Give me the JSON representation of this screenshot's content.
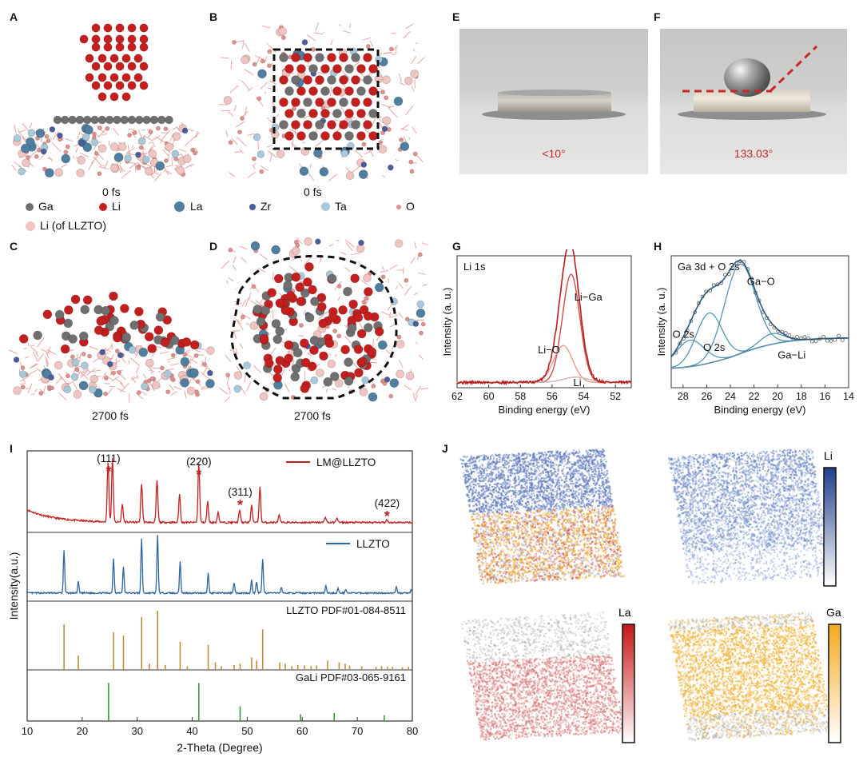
{
  "panels": {
    "A": "A",
    "B": "B",
    "C": "C",
    "D": "D",
    "E": "E",
    "F": "F",
    "G": "G",
    "H": "H",
    "I": "I",
    "J": "J"
  },
  "sim": {
    "time_top_a": "0 fs",
    "time_top_b": "0 fs",
    "time_bottom_c": "2700 fs",
    "time_bottom_d": "2700 fs",
    "legend": [
      {
        "label": "Ga",
        "color": "#6f6f6f"
      },
      {
        "label": "Li",
        "color": "#c41f1f"
      },
      {
        "label": "La",
        "color": "#4f7fa0"
      },
      {
        "label": "Zr",
        "color": "#4a5d9a"
      },
      {
        "label": "Ta",
        "color": "#a9c8da"
      },
      {
        "label": "O",
        "color": "#e2908c"
      },
      {
        "label": "Li (of LLZTO)",
        "color": "#f0c4c0"
      }
    ]
  },
  "photos": {
    "e_angle": "<10°",
    "f_angle": "133.03°"
  },
  "chart_data": [
    {
      "id": "G",
      "type": "line",
      "title": "Li 1s",
      "xlabel": "Binding energy (eV)",
      "ylabel": "Intensity (a. u.)",
      "xlim": [
        62,
        51
      ],
      "xticks": [
        "62",
        "60",
        "58",
        "56",
        "54",
        "52"
      ],
      "peaks": [
        {
          "name": "Li−Ga",
          "center": 54.8,
          "height": 0.82
        },
        {
          "name": "Li−O",
          "center": 55.3,
          "height": 0.28
        },
        {
          "name": "Li",
          "center": 54.5,
          "height": 0.04
        }
      ],
      "labels": [
        "Li−Ga",
        "Li−O",
        "Li"
      ]
    },
    {
      "id": "H",
      "type": "line",
      "title": "Ga 3d + O 2s",
      "xlabel": "Binding energy (eV)",
      "ylabel": "Intensity (a. u.)",
      "xlim": [
        29,
        14
      ],
      "xticks": [
        "28",
        "26",
        "24",
        "22",
        "20",
        "18",
        "16",
        "14"
      ],
      "peaks": [
        {
          "name": "Ga−O",
          "center": 23.2,
          "height": 0.68
        },
        {
          "name": "O 2s",
          "center": 25.8,
          "height": 0.38
        },
        {
          "name": "O 2s",
          "center": 27.4,
          "height": 0.2
        },
        {
          "name": "Ga−Li",
          "center": 20.5,
          "height": 0.08
        }
      ],
      "labels": [
        "Ga−O",
        "O 2s",
        "O 2s",
        "Ga−Li"
      ]
    },
    {
      "id": "I",
      "type": "line",
      "xlabel": "2-Theta (Degree)",
      "ylabel": "Intensity(a.u.)",
      "xlim": [
        10,
        80
      ],
      "xticks": [
        "10",
        "20",
        "30",
        "40",
        "50",
        "60",
        "70",
        "80"
      ],
      "series": [
        {
          "name": "LM@LLZTO",
          "color": "#c41f1f",
          "peaks": [
            [
              24.7,
              0.85
            ],
            [
              25.5,
              0.9
            ],
            [
              27.3,
              0.25
            ],
            [
              30.8,
              0.55
            ],
            [
              33.6,
              0.6
            ],
            [
              37.7,
              0.4
            ],
            [
              41.2,
              0.85
            ],
            [
              42.8,
              0.3
            ],
            [
              44.7,
              0.15
            ],
            [
              48.6,
              0.18
            ],
            [
              50.8,
              0.25
            ],
            [
              52.3,
              0.5
            ],
            [
              55.8,
              0.1
            ],
            [
              64.2,
              0.08
            ],
            [
              66.3,
              0.07
            ],
            [
              75.4,
              0.04
            ]
          ]
        },
        {
          "name": "LLZTO",
          "color": "#2a64a0",
          "peaks": [
            [
              16.7,
              0.75
            ],
            [
              19.3,
              0.2
            ],
            [
              25.7,
              0.6
            ],
            [
              27.5,
              0.45
            ],
            [
              30.8,
              0.95
            ],
            [
              33.7,
              1.0
            ],
            [
              37.8,
              0.55
            ],
            [
              42.9,
              0.35
            ],
            [
              47.6,
              0.18
            ],
            [
              50.8,
              0.22
            ],
            [
              51.7,
              0.2
            ],
            [
              52.8,
              0.6
            ],
            [
              56.2,
              0.1
            ],
            [
              64.3,
              0.12
            ],
            [
              66.5,
              0.08
            ],
            [
              67.9,
              0.07
            ],
            [
              77.1,
              0.1
            ],
            [
              79.8,
              0.06
            ]
          ]
        },
        {
          "name": "LLZTO PDF#01-084-8511",
          "color": "#b98f3a",
          "sticks": [
            [
              16.7,
              0.73
            ],
            [
              19.3,
              0.23
            ],
            [
              25.7,
              0.6
            ],
            [
              27.5,
              0.55
            ],
            [
              30.8,
              0.85
            ],
            [
              32.2,
              0.1
            ],
            [
              33.7,
              0.95
            ],
            [
              35.1,
              0.08
            ],
            [
              37.8,
              0.45
            ],
            [
              39.1,
              0.06
            ],
            [
              42.9,
              0.4
            ],
            [
              44.2,
              0.12
            ],
            [
              45.3,
              0.06
            ],
            [
              47.6,
              0.08
            ],
            [
              48.7,
              0.1
            ],
            [
              50.8,
              0.2
            ],
            [
              51.7,
              0.15
            ],
            [
              52.8,
              0.65
            ],
            [
              55.9,
              0.12
            ],
            [
              56.9,
              0.1
            ],
            [
              58.1,
              0.06
            ],
            [
              59.2,
              0.08
            ],
            [
              60.4,
              0.07
            ],
            [
              61.6,
              0.06
            ],
            [
              62.6,
              0.07
            ],
            [
              64.6,
              0.15
            ],
            [
              66.7,
              0.12
            ],
            [
              67.8,
              0.1
            ],
            [
              68.6,
              0.07
            ],
            [
              70.8,
              0.06
            ],
            [
              73.4,
              0.05
            ],
            [
              74.4,
              0.06
            ],
            [
              75.5,
              0.05
            ],
            [
              76.4,
              0.05
            ],
            [
              78.2,
              0.04
            ],
            [
              79.3,
              0.05
            ]
          ]
        },
        {
          "name": "GaLi PDF#03-065-9161",
          "color": "#3a9a3a",
          "sticks": [
            [
              24.8,
              0.85
            ],
            [
              41.2,
              0.85
            ],
            [
              48.7,
              0.33
            ],
            [
              59.7,
              0.15
            ],
            [
              65.8,
              0.18
            ],
            [
              74.9,
              0.13
            ]
          ]
        }
      ],
      "annotations": [
        {
          "text": "(111)",
          "x": 24.8
        },
        {
          "text": "(220)",
          "x": 41.2
        },
        {
          "text": "(311)",
          "x": 48.7
        },
        {
          "text": "(422)",
          "x": 75.4
        }
      ],
      "marker": "*"
    }
  ],
  "tomo": {
    "li_label": "Li",
    "la_label": "La",
    "ga_label": "Ga"
  }
}
